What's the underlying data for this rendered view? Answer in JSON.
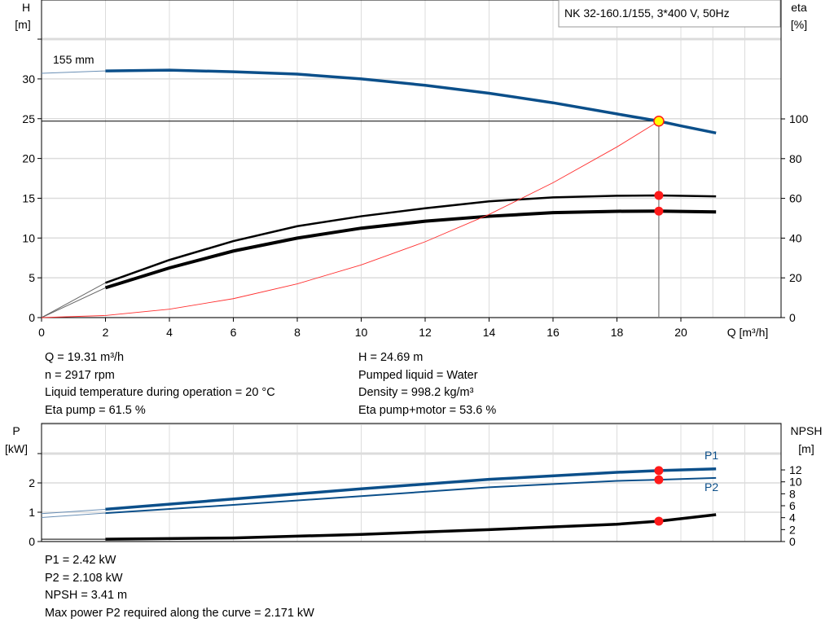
{
  "title": "NK 32-160.1/155, 3*400 V, 50Hz",
  "impeller_label": "155 mm",
  "colors": {
    "head": "#0b4f8a",
    "eta": "#000000",
    "system": "#ff3030",
    "point": "#ff1a1a",
    "duty_point": "#ffff00",
    "grid": "#dcdcdc"
  },
  "chart_data": [
    {
      "type": "line",
      "title": "NK 32-160.1/155, 3*400 V, 50Hz",
      "xlabel": "Q [m³/h]",
      "xlim": [
        0,
        23
      ],
      "xticks": [
        0,
        2,
        4,
        6,
        8,
        10,
        12,
        14,
        16,
        18,
        20
      ],
      "ylabel_left": [
        "H",
        "[m]"
      ],
      "ylim_left": [
        0,
        35
      ],
      "yticks_left": [
        0,
        5,
        10,
        15,
        20,
        25,
        30
      ],
      "ylabel_right": [
        "eta",
        "[%]"
      ],
      "ylim_right": [
        0,
        143
      ],
      "yticks_right": [
        0,
        20,
        40,
        60,
        80,
        100
      ],
      "grid": true,
      "series": [
        {
          "id": "head",
          "axis": "left",
          "x": [
            0,
            2,
            4,
            6,
            8,
            10,
            12,
            14,
            16,
            18,
            19.31,
            20,
            21.1
          ],
          "y": [
            30.7,
            31.0,
            31.1,
            30.9,
            30.6,
            30.0,
            29.2,
            28.2,
            27.0,
            25.6,
            24.69,
            24.1,
            23.2
          ]
        },
        {
          "id": "eta_pump",
          "axis": "right",
          "x": [
            0,
            2,
            4,
            6,
            8,
            10,
            12,
            14,
            16,
            18,
            19.31,
            21.1
          ],
          "y": [
            0,
            17.5,
            29,
            38.5,
            46,
            51,
            55,
            58.5,
            60.5,
            61.3,
            61.5,
            61
          ]
        },
        {
          "id": "eta_pump_motor",
          "axis": "right",
          "x": [
            0,
            2,
            4,
            6,
            8,
            10,
            12,
            14,
            16,
            18,
            19.31,
            21.1
          ],
          "y": [
            0,
            15,
            25,
            33.5,
            40,
            45,
            48.5,
            51,
            52.8,
            53.5,
            53.6,
            53.2
          ]
        },
        {
          "id": "system",
          "axis": "left",
          "x": [
            0,
            2,
            4,
            6,
            8,
            10,
            12,
            14,
            16,
            18,
            19.31
          ],
          "y": [
            0,
            0.26,
            1.06,
            2.38,
            4.24,
            6.62,
            9.53,
            12.97,
            16.95,
            21.45,
            24.69
          ]
        }
      ],
      "duty_point": {
        "q": 19.31,
        "h": 24.69,
        "eta_pump": 61.5,
        "eta_pump_motor": 53.6
      }
    },
    {
      "type": "line",
      "xlim": [
        0,
        23
      ],
      "xticks": [
        0,
        2,
        4,
        6,
        8,
        10,
        12,
        14,
        16,
        18,
        20
      ],
      "ylabel_left": [
        "P",
        "[kW]"
      ],
      "ylim_left": [
        0,
        4
      ],
      "yticks_left": [
        0,
        1,
        2
      ],
      "ylabel_right": [
        "NPSH",
        "[m]"
      ],
      "ylim_right": [
        0,
        16
      ],
      "yticks_right": [
        0,
        2,
        4,
        6,
        8,
        10,
        12
      ],
      "grid": true,
      "series": [
        {
          "id": "p1",
          "name": "P1",
          "axis": "left",
          "x": [
            0,
            2,
            6,
            10,
            14,
            18,
            19.31,
            21.1
          ],
          "y": [
            0.95,
            1.1,
            1.45,
            1.8,
            2.12,
            2.36,
            2.42,
            2.48
          ]
        },
        {
          "id": "p2",
          "name": "P2",
          "axis": "left",
          "x": [
            0,
            2,
            6,
            10,
            14,
            18,
            19.31,
            21.1
          ],
          "y": [
            0.82,
            0.97,
            1.25,
            1.55,
            1.85,
            2.07,
            2.108,
            2.17
          ]
        },
        {
          "id": "npsh",
          "axis": "right",
          "x": [
            0,
            2,
            6,
            10,
            14,
            18,
            19.31,
            21.1
          ],
          "y": [
            0.4,
            0.4,
            0.6,
            1.2,
            2.0,
            2.9,
            3.41,
            4.5
          ]
        }
      ],
      "duty_point": {
        "q": 19.31,
        "p1": 2.42,
        "p2": 2.108,
        "npsh": 3.41
      }
    }
  ],
  "info_top": {
    "col1": [
      "Q = 19.31 m³/h",
      "n = 2917 rpm",
      "Liquid temperature during operation = 20 °C",
      "Eta pump = 61.5 %"
    ],
    "col2": [
      "H = 24.69 m",
      "Pumped liquid = Water",
      "Density = 998.2 kg/m³",
      "Eta pump+motor = 53.6 %"
    ]
  },
  "info_bottom": [
    "P1 = 2.42 kW",
    "P2 = 2.108 kW",
    "NPSH = 3.41 m",
    "Max power P2 required along the curve = 2.171 kW"
  ]
}
